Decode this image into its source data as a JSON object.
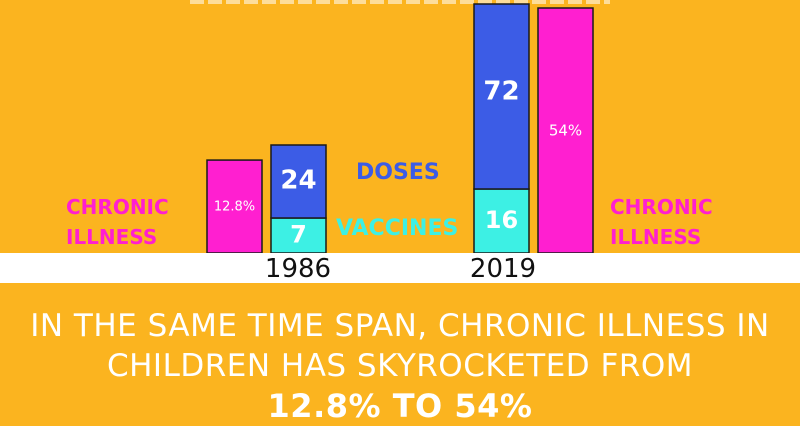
{
  "chart_data": {
    "type": "bar",
    "categories": [
      "1986",
      "2019"
    ],
    "series": [
      {
        "name": "Chronic Illness",
        "values": [
          12.8,
          54
        ],
        "labels": [
          "12.8%",
          "54%"
        ],
        "color": "#ff1fd0"
      },
      {
        "name": "Vaccines",
        "values": [
          7,
          16
        ],
        "labels": [
          "7",
          "16"
        ],
        "color": "#3df0e4"
      },
      {
        "name": "Doses",
        "values": [
          24,
          72
        ],
        "labels": [
          "24",
          "72"
        ],
        "color": "#3c5ce6"
      }
    ],
    "stacked_groups": [
      [
        "Vaccines",
        "Doses"
      ]
    ],
    "legend": {
      "doses": "DOSES",
      "vaccines": "VACCINES"
    },
    "side_labels": {
      "left": "CHRONIC ILLNESS",
      "right": "CHRONIC ILLNESS"
    }
  },
  "headline": {
    "line1": "IN THE SAME TIME SPAN, CHRONIC ILLNESS IN",
    "line2": "CHILDREN HAS SKYROCKETED FROM",
    "line3": "12.8% TO 54%"
  },
  "colors": {
    "background": "#fbb41f",
    "magenta": "#ff1fd0",
    "blue": "#3c5ce6",
    "cyan": "#3df0e4",
    "white": "#ffffff"
  }
}
